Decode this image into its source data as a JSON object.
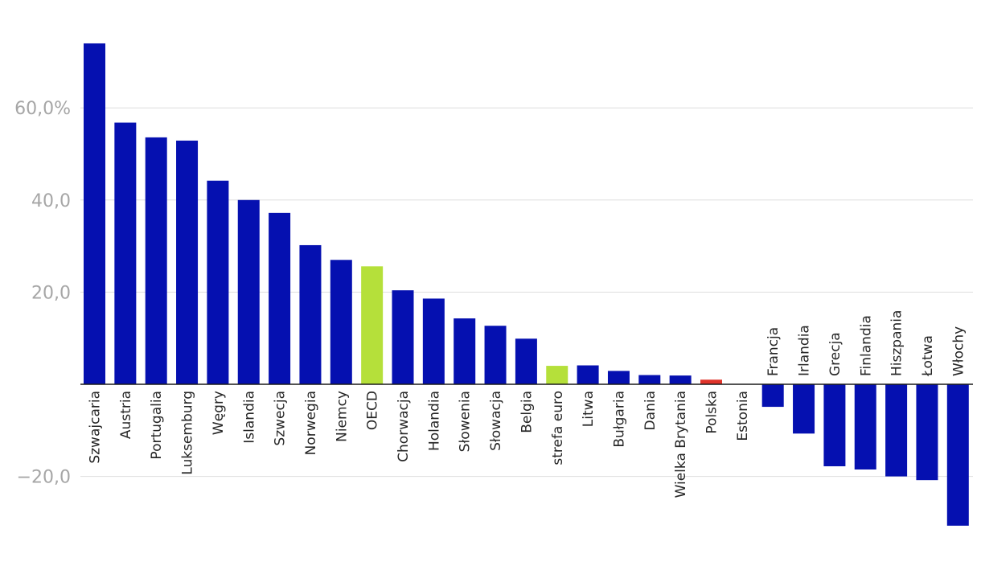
{
  "chart_data": {
    "type": "bar",
    "title": "",
    "xlabel": "",
    "ylabel": "",
    "ylim": [
      -31,
      74
    ],
    "yticks": [
      {
        "value": 60,
        "label": "60,0%"
      },
      {
        "value": 40,
        "label": "40,0"
      },
      {
        "value": 20,
        "label": "20,0"
      },
      {
        "value": -20,
        "label": "−20,0"
      }
    ],
    "grid": true,
    "legend": "none",
    "categories": [
      "Szwajcaria",
      "Austria",
      "Portugalia",
      "Luksemburg",
      "Węgry",
      "Islandia",
      "Szwecja",
      "Norwegia",
      "Niemcy",
      "OECD",
      "Chorwacja",
      "Holandia",
      "Słowenia",
      "Słowacja",
      "Belgia",
      "strefa euro",
      "Litwa",
      "Bułgaria",
      "Dania",
      "Wielka Brytania",
      "Polska",
      "Estonia",
      "Francja",
      "Irlandia",
      "Grecja",
      "Finlandia",
      "Hiszpania",
      "Łotwa",
      "Włochy"
    ],
    "values": [
      74,
      56.8,
      53.6,
      52.9,
      44.2,
      40,
      37.2,
      30.2,
      27,
      25.6,
      20.4,
      18.6,
      14.3,
      12.7,
      9.9,
      4,
      4.1,
      2.9,
      2,
      1.9,
      1,
      0,
      -4.9,
      -10.7,
      -17.8,
      -18.5,
      -20,
      -20.8,
      -30.7
    ],
    "colors": {
      "default": "#0510b0",
      "highlight_oecd": "#b5e03a",
      "highlight_euro": "#b5e03a",
      "highlight_polska": "#e0332a",
      "text": "#262626",
      "tick": "#a6a6a6",
      "grid": "#dedede"
    },
    "bar_colors": [
      "#0510b0",
      "#0510b0",
      "#0510b0",
      "#0510b0",
      "#0510b0",
      "#0510b0",
      "#0510b0",
      "#0510b0",
      "#0510b0",
      "#b5e03a",
      "#0510b0",
      "#0510b0",
      "#0510b0",
      "#0510b0",
      "#0510b0",
      "#b5e03a",
      "#0510b0",
      "#0510b0",
      "#0510b0",
      "#0510b0",
      "#e0332a",
      "#0510b0",
      "#0510b0",
      "#0510b0",
      "#0510b0",
      "#0510b0",
      "#0510b0",
      "#0510b0",
      "#0510b0"
    ]
  }
}
